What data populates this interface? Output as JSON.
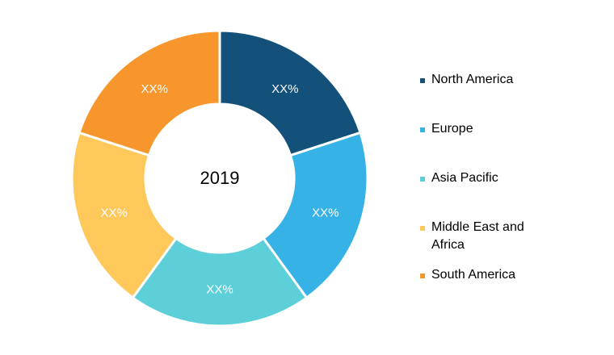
{
  "chart_data": {
    "type": "pie",
    "variant": "donut",
    "center_label": "2019",
    "categories": [
      "North America",
      "Europe",
      "Asia Pacific",
      "Middle East and Africa",
      "South America"
    ],
    "values": [
      20,
      20,
      20,
      20,
      20
    ],
    "value_labels": [
      "XX%",
      "XX%",
      "XX%",
      "XX%",
      "XX%"
    ],
    "colors": [
      "#13507A",
      "#36B2E6",
      "#5DCFD8",
      "#FFC85A",
      "#F7962D"
    ],
    "legend_position": "right"
  }
}
